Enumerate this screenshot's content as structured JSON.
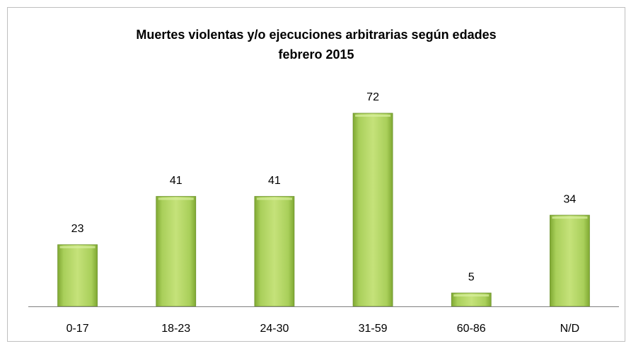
{
  "chart_data": {
    "type": "bar",
    "title": [
      "Muertes violentas y/o ejecuciones arbitrarias según edades",
      "febrero 2015"
    ],
    "categories": [
      "0-17",
      "18-23",
      "24-30",
      "31-59",
      "60-86",
      "N/D"
    ],
    "values": [
      23,
      41,
      41,
      72,
      5,
      34
    ],
    "color": "#9bbb59"
  }
}
